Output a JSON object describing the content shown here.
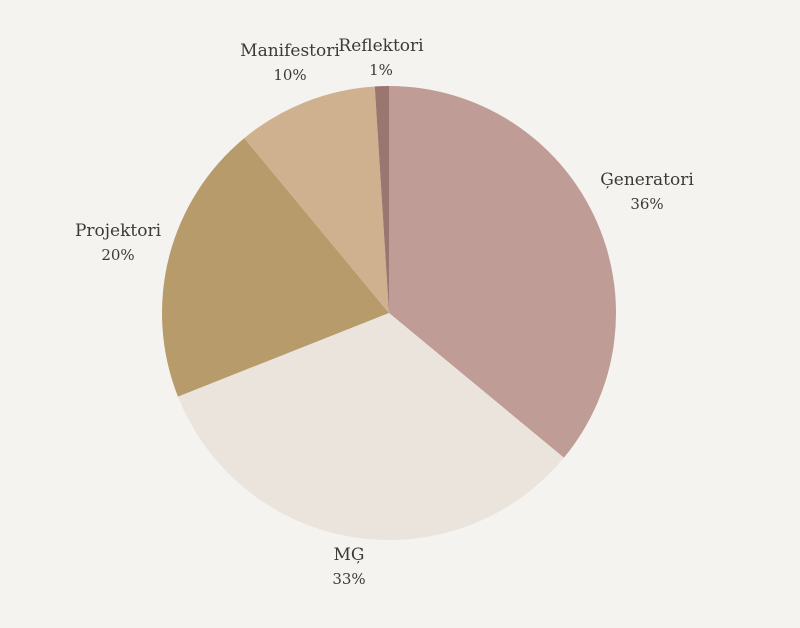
{
  "chart_data": {
    "type": "pie",
    "title": "",
    "slices": [
      {
        "label": "Ģeneratori",
        "value": 36,
        "display": "36%",
        "color": "#c09c97"
      },
      {
        "label": "MĢ",
        "value": 33,
        "display": "33%",
        "color": "#ebe4dd"
      },
      {
        "label": "Projektori",
        "value": 20,
        "display": "20%",
        "color": "#b79b6a"
      },
      {
        "label": "Manifestori",
        "value": 10,
        "display": "10%",
        "color": "#cfb190"
      },
      {
        "label": "Reflektori",
        "value": 1,
        "display": "1%",
        "color": "#9b7671"
      }
    ],
    "start_angle_deg": 0,
    "direction": "clockwise",
    "legend": "none"
  }
}
